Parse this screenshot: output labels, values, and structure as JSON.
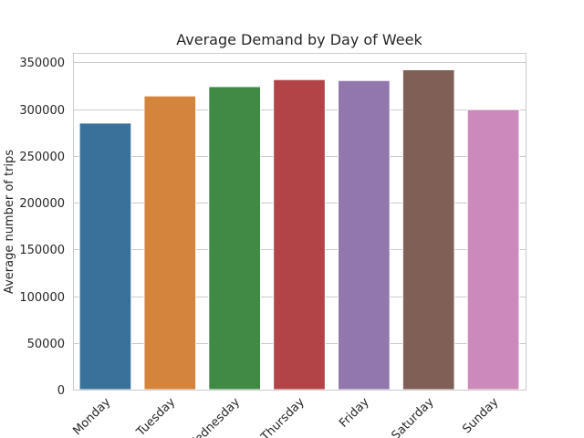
{
  "chart_data": {
    "type": "bar",
    "title": "Average Demand by Day of Week",
    "xlabel": "",
    "ylabel": "Average number of trips",
    "categories": [
      "Monday",
      "Tuesday",
      "Wednesday",
      "Thursday",
      "Friday",
      "Saturday",
      "Sunday"
    ],
    "values": [
      285000,
      314000,
      324000,
      331500,
      330500,
      342000,
      299500
    ],
    "colors": [
      "#3a719a",
      "#d5843b",
      "#3f8b43",
      "#b24447",
      "#9277ad",
      "#7f5f56",
      "#cc8aba"
    ],
    "ylim": [
      0,
      360000
    ],
    "yticks": [
      0,
      50000,
      100000,
      150000,
      200000,
      250000,
      300000,
      350000
    ],
    "ytick_labels": [
      "0",
      "50000",
      "100000",
      "150000",
      "200000",
      "250000",
      "300000",
      "350000"
    ],
    "grid": true,
    "xtick_rotation": 45
  }
}
